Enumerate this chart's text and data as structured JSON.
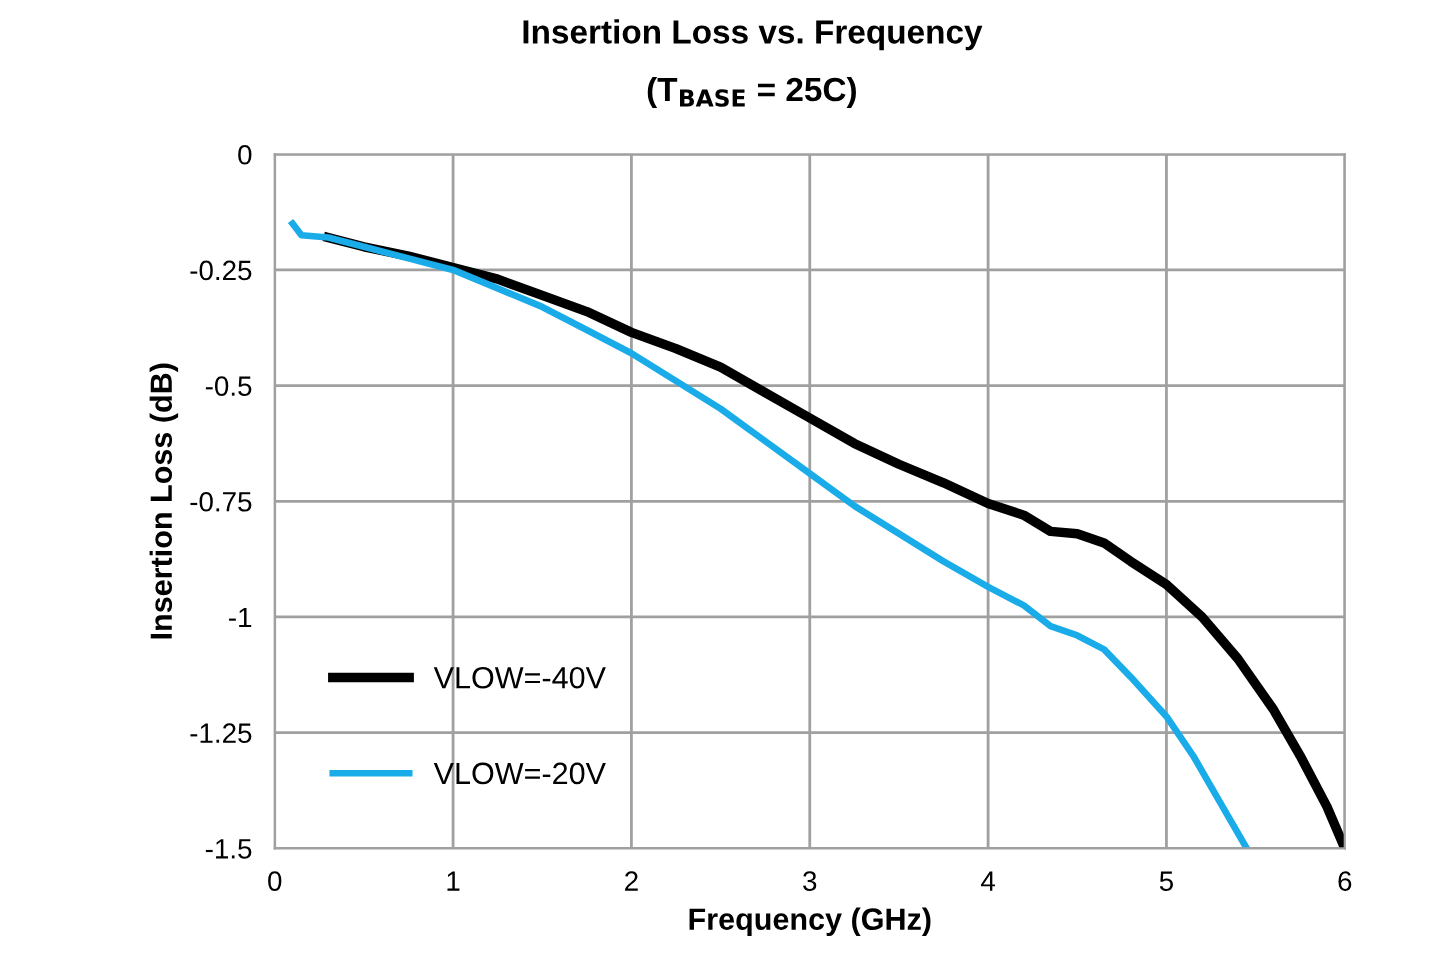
{
  "chart_data": {
    "type": "line",
    "title": "Insertion Loss vs. Frequency",
    "subtitle": "(T$_{BASE}$ = 25C)",
    "xlabel": "Frequency (GHz)",
    "ylabel": "Insertion Loss (dB)",
    "xlim": [
      0,
      6
    ],
    "xticks": [
      0,
      1,
      2,
      3,
      4,
      5,
      6
    ],
    "ylim": [
      -1.5,
      0
    ],
    "yticks": [
      -1.5,
      -1.25,
      -1,
      -0.75,
      -0.5,
      -0.25,
      0
    ],
    "grid": true,
    "legend": "bottom left",
    "marker": "none",
    "line_style": "solid",
    "series": [
      {
        "name": "VLOW=-40V",
        "color": "#000000",
        "x": [
          0.3,
          0.5,
          0.75,
          1,
          1.25,
          1.5,
          1.75,
          2,
          2.25,
          2.5,
          2.75,
          3,
          3.25,
          3.5,
          3.75,
          4,
          4.2,
          4.35,
          4.5,
          4.65,
          4.8,
          5,
          5.2,
          5.4,
          5.6,
          5.75,
          5.9,
          6
        ],
        "values": [
          -0.18,
          -0.2,
          -0.22,
          -0.245,
          -0.27,
          -0.305,
          -0.34,
          -0.385,
          -0.42,
          -0.46,
          -0.515,
          -0.57,
          -0.625,
          -0.67,
          -0.71,
          -0.755,
          -0.78,
          -0.815,
          -0.82,
          -0.84,
          -0.88,
          -0.93,
          -1.0,
          -1.09,
          -1.2,
          -1.3,
          -1.41,
          -1.5
        ]
      },
      {
        "name": "VLOW=-20V",
        "color": "#1aace8",
        "x": [
          0.1,
          0.15,
          0.3,
          0.5,
          0.75,
          1,
          1.25,
          1.5,
          1.75,
          2,
          2.25,
          2.5,
          2.75,
          3,
          3.25,
          3.5,
          3.75,
          4,
          4.2,
          4.35,
          4.5,
          4.65,
          4.8,
          5,
          5.15,
          5.3,
          5.45
        ],
        "values": [
          -0.15,
          -0.175,
          -0.18,
          -0.2,
          -0.225,
          -0.25,
          -0.29,
          -0.33,
          -0.38,
          -0.43,
          -0.49,
          -0.55,
          -0.62,
          -0.69,
          -0.76,
          -0.82,
          -0.88,
          -0.935,
          -0.975,
          -1.02,
          -1.04,
          -1.07,
          -1.13,
          -1.215,
          -1.3,
          -1.4,
          -1.5
        ]
      }
    ]
  }
}
